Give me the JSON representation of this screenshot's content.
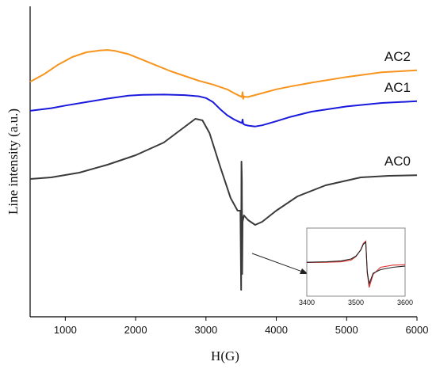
{
  "chart_data": {
    "type": "line",
    "xlabel": "H(G)",
    "ylabel": "Line intensity (a.u.)",
    "xlim": [
      500,
      6000
    ],
    "x_ticks": [
      "1000",
      "2000",
      "3000",
      "4000",
      "5000",
      "6000"
    ],
    "y_ticks_shown": false,
    "grid": false,
    "legend": "labels placed at right end of each curve",
    "series": [
      {
        "name": "AC2",
        "color": "#f7941d",
        "x": [
          500,
          700,
          900,
          1100,
          1300,
          1500,
          1600,
          1700,
          1900,
          2100,
          2300,
          2500,
          2700,
          2900,
          3100,
          3300,
          3400,
          3480,
          3510,
          3520,
          3530,
          3540,
          3560,
          3600,
          3700,
          3800,
          4000,
          4200,
          4500,
          5000,
          5500,
          6000
        ],
        "y": [
          -0.55,
          -0.15,
          0.35,
          0.75,
          1.0,
          1.1,
          1.12,
          1.08,
          0.9,
          0.6,
          0.3,
          0.0,
          -0.25,
          -0.5,
          -0.7,
          -0.95,
          -1.15,
          -1.3,
          -1.35,
          -1.1,
          -1.45,
          -1.32,
          -1.35,
          -1.35,
          -1.25,
          -1.15,
          -0.95,
          -0.8,
          -0.6,
          -0.3,
          -0.05,
          0.05
        ]
      },
      {
        "name": "AC1",
        "color": "#1a1adc",
        "x": [
          500,
          800,
          1000,
          1300,
          1600,
          1900,
          2100,
          2400,
          2700,
          2900,
          3000,
          3100,
          3200,
          3300,
          3400,
          3480,
          3510,
          3520,
          3530,
          3550,
          3600,
          3700,
          3800,
          4000,
          4200,
          4500,
          5000,
          5500,
          6000
        ],
        "y": [
          -0.45,
          -0.3,
          -0.15,
          0.05,
          0.25,
          0.42,
          0.47,
          0.48,
          0.45,
          0.38,
          0.28,
          0.05,
          -0.35,
          -0.7,
          -0.95,
          -1.1,
          -1.15,
          -0.95,
          -1.2,
          -1.25,
          -1.3,
          -1.35,
          -1.28,
          -1.05,
          -0.8,
          -0.5,
          -0.2,
          0.0,
          0.1
        ]
      },
      {
        "name": "AC0",
        "color": "#3a3a3a",
        "x": [
          500,
          800,
          1200,
          1600,
          2000,
          2400,
          2700,
          2850,
          2950,
          3050,
          3200,
          3350,
          3450,
          3490,
          3500,
          3505,
          3510,
          3515,
          3520,
          3540,
          3600,
          3700,
          3800,
          4000,
          4300,
          4700,
          5200,
          5600,
          6000
        ],
        "y": [
          0.0,
          0.05,
          0.2,
          0.45,
          0.75,
          1.15,
          1.65,
          1.9,
          1.85,
          1.45,
          0.4,
          -0.6,
          -1.0,
          -1.0,
          -3.5,
          0.55,
          0.0,
          -3.0,
          -1.35,
          -1.15,
          -1.3,
          -1.45,
          -1.35,
          -1.0,
          -0.55,
          -0.2,
          0.05,
          0.1,
          0.12
        ]
      }
    ],
    "inset": {
      "type": "line",
      "xlim": [
        3400,
        3600
      ],
      "x_ticks": [
        "3400",
        "3500",
        "3600"
      ],
      "series": [
        {
          "color": "#e03030",
          "x": [
            3400,
            3440,
            3470,
            3490,
            3500,
            3510,
            3515,
            3520,
            3523,
            3527,
            3535,
            3550,
            3575,
            3600
          ],
          "y": [
            0.05,
            0.06,
            0.08,
            0.15,
            0.3,
            0.6,
            0.85,
            0.95,
            -0.4,
            -1.0,
            -0.45,
            -0.15,
            -0.06,
            -0.04
          ]
        },
        {
          "color": "#222222",
          "x": [
            3400,
            3440,
            3470,
            3490,
            3500,
            3510,
            3515,
            3520,
            3523,
            3527,
            3535,
            3550,
            3575,
            3600
          ],
          "y": [
            0.06,
            0.08,
            0.12,
            0.2,
            0.32,
            0.58,
            0.82,
            0.9,
            -0.35,
            -0.85,
            -0.4,
            -0.25,
            -0.15,
            -0.1
          ]
        }
      ]
    }
  }
}
